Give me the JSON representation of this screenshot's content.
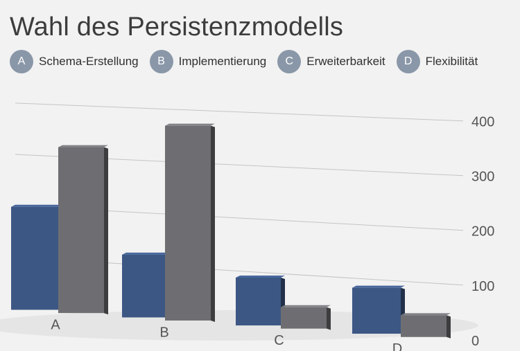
{
  "title": "Wahl des Persistenzmodells",
  "legend": [
    {
      "key": "A",
      "label": "Schema-Erstellung"
    },
    {
      "key": "B",
      "label": "Implementierung"
    },
    {
      "key": "C",
      "label": "Erweiterbarkeit"
    },
    {
      "key": "D",
      "label": "Flexibilität"
    }
  ],
  "colors": {
    "series1": "#3d5784",
    "series2": "#6e6e72",
    "badge": "#8a97a8",
    "grid": "#c4c4c4"
  },
  "chart_data": {
    "type": "bar",
    "categories": [
      "A",
      "B",
      "C",
      "D"
    ],
    "series": [
      {
        "values": [
          200,
          120,
          90,
          85
        ]
      },
      {
        "values": [
          320,
          370,
          40,
          40
        ]
      }
    ],
    "ylim": [
      0,
      400
    ],
    "yticks": [
      0,
      100,
      200,
      300,
      400
    ],
    "grid": true,
    "style": "3d-perspective",
    "xlabel": "",
    "ylabel": ""
  }
}
